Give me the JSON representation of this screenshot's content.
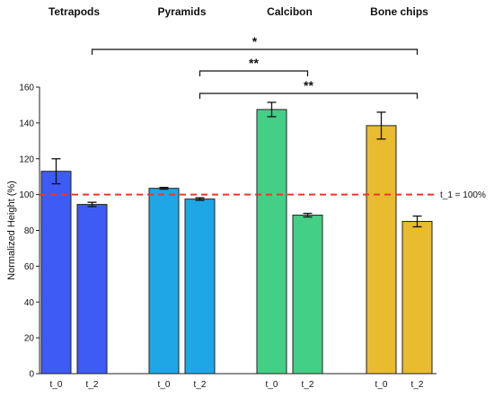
{
  "chart_data": {
    "type": "bar",
    "title": "",
    "xlabel": "",
    "ylabel": "Normalized Height (%)",
    "ylim": [
      0,
      160
    ],
    "yticks": [
      0,
      20,
      40,
      60,
      80,
      100,
      120,
      140,
      160
    ],
    "groups": [
      {
        "name": "Tetrapods",
        "color": "#3f5bf5",
        "bars": [
          {
            "label": "t_0",
            "value": 113,
            "error": 7
          },
          {
            "label": "t_2",
            "value": 94.5,
            "error": 1.2
          }
        ]
      },
      {
        "name": "Pyramids",
        "color": "#1ea6e6",
        "bars": [
          {
            "label": "t_0",
            "value": 103.5,
            "error": 0.5
          },
          {
            "label": "t_2",
            "value": 97.5,
            "error": 0.7
          }
        ]
      },
      {
        "name": "Calcibon",
        "color": "#44cf87",
        "bars": [
          {
            "label": "t_0",
            "value": 147.5,
            "error": 4
          },
          {
            "label": "t_2",
            "value": 88.5,
            "error": 1
          }
        ]
      },
      {
        "name": "Bone chips",
        "color": "#e9bb2e",
        "bars": [
          {
            "label": "t_0",
            "value": 138.5,
            "error": 7.5
          },
          {
            "label": "t_2",
            "value": 85,
            "error": 3
          }
        ]
      }
    ],
    "reference_line": {
      "value": 100,
      "label": "t_1 = 100%",
      "color": "#e53a2a"
    },
    "significance": [
      {
        "from_group": 0,
        "to_group": 3,
        "label": "*"
      },
      {
        "from_group": 1,
        "to_group": 2,
        "label": "**"
      },
      {
        "from_group": 1,
        "to_group": 3,
        "label": "**"
      }
    ],
    "grid": false
  }
}
